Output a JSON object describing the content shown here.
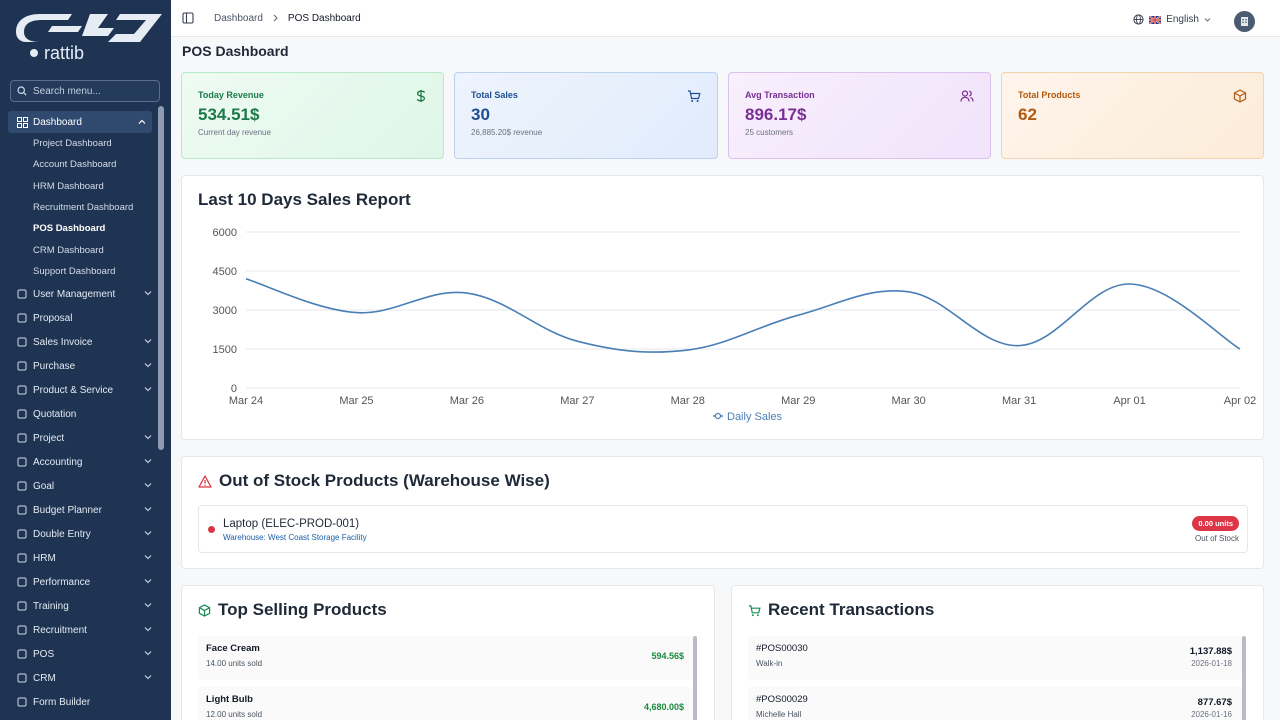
{
  "brand": {
    "name": "rattib"
  },
  "search": {
    "placeholder": "Search menu..."
  },
  "sidebar": {
    "dashboard": {
      "label": "Dashboard",
      "children": [
        "Project Dashboard",
        "Account Dashboard",
        "HRM Dashboard",
        "Recruitment Dashboard",
        "POS Dashboard",
        "CRM Dashboard",
        "Support Dashboard"
      ]
    },
    "items": [
      {
        "label": "User Management",
        "icon": "users-icon",
        "chevron": true
      },
      {
        "label": "Proposal",
        "icon": "proposal-icon",
        "chevron": false
      },
      {
        "label": "Sales Invoice",
        "icon": "file-icon",
        "chevron": true
      },
      {
        "label": "Purchase",
        "icon": "cart-icon",
        "chevron": true
      },
      {
        "label": "Product & Service",
        "icon": "box-icon",
        "chevron": true
      },
      {
        "label": "Quotation",
        "icon": "document-icon",
        "chevron": false
      },
      {
        "label": "Project",
        "icon": "project-icon",
        "chevron": true
      },
      {
        "label": "Accounting",
        "icon": "calculator-icon",
        "chevron": true
      },
      {
        "label": "Goal",
        "icon": "target-icon",
        "chevron": true
      },
      {
        "label": "Budget Planner",
        "icon": "dollar-icon",
        "chevron": true
      },
      {
        "label": "Double Entry",
        "icon": "book-icon",
        "chevron": true
      },
      {
        "label": "HRM",
        "icon": "hrm-icon",
        "chevron": true
      },
      {
        "label": "Performance",
        "icon": "trend-icon",
        "chevron": true
      },
      {
        "label": "Training",
        "icon": "cap-icon",
        "chevron": true
      },
      {
        "label": "Recruitment",
        "icon": "recruit-icon",
        "chevron": true
      },
      {
        "label": "POS",
        "icon": "pos-icon",
        "chevron": true
      },
      {
        "label": "CRM",
        "icon": "crm-icon",
        "chevron": true
      },
      {
        "label": "Form Builder",
        "icon": "form-icon",
        "chevron": false
      }
    ]
  },
  "breadcrumb": {
    "root": "Dashboard",
    "current": "POS Dashboard"
  },
  "language": {
    "label": "English"
  },
  "page": {
    "title": "POS Dashboard"
  },
  "cards": {
    "revenue": {
      "label": "Today Revenue",
      "value": "534.51$",
      "sub": "Current day revenue"
    },
    "sales": {
      "label": "Total Sales",
      "value": "30",
      "sub": "26,885.20$ revenue"
    },
    "avg": {
      "label": "Avg Transaction",
      "value": "896.17$",
      "sub": "25 customers"
    },
    "products": {
      "label": "Total Products",
      "value": "62"
    }
  },
  "chart_data": {
    "type": "line",
    "title": "Last 10 Days Sales Report",
    "categories": [
      "Mar 24",
      "Mar 25",
      "Mar 26",
      "Mar 27",
      "Mar 28",
      "Mar 29",
      "Mar 30",
      "Mar 31",
      "Apr 01",
      "Apr 02"
    ],
    "series": [
      {
        "name": "Daily Sales",
        "values": [
          4200,
          2900,
          3650,
          1800,
          1460,
          2800,
          3700,
          1630,
          4000,
          1500
        ]
      }
    ],
    "yticks": [
      "6000",
      "4500",
      "3000",
      "1500",
      "0"
    ],
    "ylim": [
      0,
      6000
    ],
    "grid": true,
    "legend": "bottom",
    "color": "#4a7fb5"
  },
  "out_of_stock": {
    "title": "Out of Stock Products (Warehouse Wise)",
    "items": [
      {
        "name": "Laptop (ELEC-PROD-001)",
        "warehouse": "Warehouse: West Coast Storage Facility",
        "qty": "0.00 units",
        "status": "Out of Stock"
      }
    ]
  },
  "top_selling": {
    "title": "Top Selling Products",
    "items": [
      {
        "name": "Face Cream",
        "sold": "14.00 units sold",
        "amount": "594.56$"
      },
      {
        "name": "Light Bulb",
        "sold": "12.00 units sold",
        "amount": "4,680.00$"
      }
    ]
  },
  "transactions": {
    "title": "Recent Transactions",
    "items": [
      {
        "id": "#POS00030",
        "customer": "Walk-in",
        "amount": "1,137.88$",
        "date": "2026-01-18"
      },
      {
        "id": "#POS00029",
        "customer": "Michelle Hall",
        "amount": "877.67$",
        "date": "2026-01-16"
      }
    ]
  }
}
